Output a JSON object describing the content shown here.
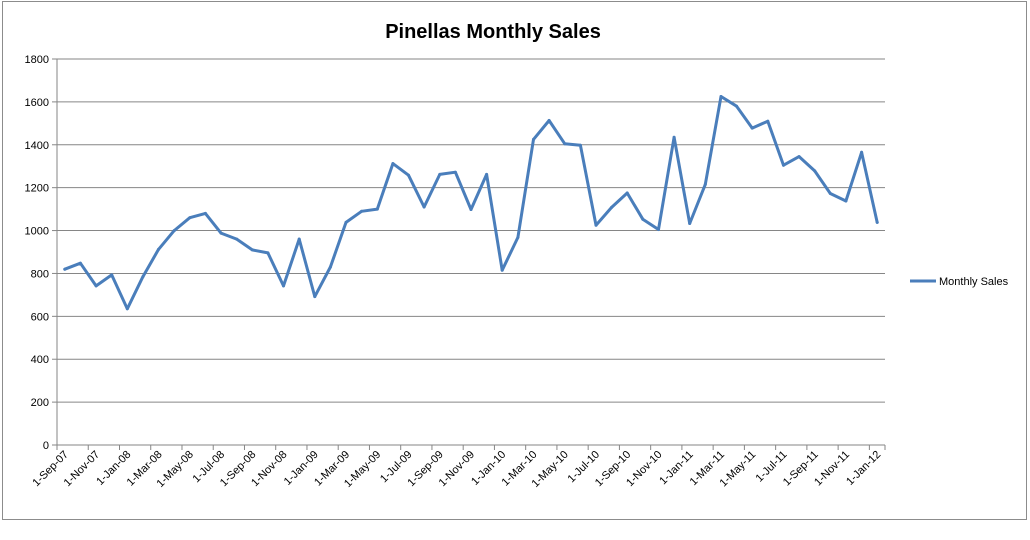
{
  "chart_data": {
    "type": "line",
    "title": "Pinellas Monthly Sales",
    "xlabel": "",
    "ylabel": "",
    "ylim": [
      0,
      1800
    ],
    "y_ticks": [
      0,
      200,
      400,
      600,
      800,
      1000,
      1200,
      1400,
      1600,
      1800
    ],
    "grid": true,
    "legend": "right",
    "line_color": "#4a7ebb",
    "x": [
      "2007-09-01",
      "2007-10-01",
      "2007-11-01",
      "2007-12-01",
      "2008-01-01",
      "2008-02-01",
      "2008-03-01",
      "2008-04-01",
      "2008-05-01",
      "2008-06-01",
      "2008-07-01",
      "2008-08-01",
      "2008-09-01",
      "2008-10-01",
      "2008-11-01",
      "2008-12-01",
      "2009-01-01",
      "2009-02-01",
      "2009-03-01",
      "2009-04-01",
      "2009-05-01",
      "2009-06-01",
      "2009-07-01",
      "2009-08-01",
      "2009-09-01",
      "2009-10-01",
      "2009-11-01",
      "2009-12-01",
      "2010-01-01",
      "2010-02-01",
      "2010-03-01",
      "2010-04-01",
      "2010-05-01",
      "2010-06-01",
      "2010-07-01",
      "2010-08-01",
      "2010-09-01",
      "2010-10-01",
      "2010-11-01",
      "2010-12-01",
      "2011-01-01",
      "2011-02-01",
      "2011-03-01",
      "2011-04-01",
      "2011-05-01",
      "2011-06-01",
      "2011-07-01",
      "2011-08-01",
      "2011-09-01",
      "2011-10-01",
      "2011-11-01",
      "2011-12-01",
      "2012-01-01"
    ],
    "x_tick_labels": [
      "1-Sep-07",
      "1-Nov-07",
      "1-Jan-08",
      "1-Mar-08",
      "1-May-08",
      "1-Jul-08",
      "1-Sep-08",
      "1-Nov-08",
      "1-Jan-09",
      "1-Mar-09",
      "1-May-09",
      "1-Jul-09",
      "1-Sep-09",
      "1-Nov-09",
      "1-Jan-10",
      "1-Mar-10",
      "1-May-10",
      "1-Jul-10",
      "1-Sep-10",
      "1-Nov-10",
      "1-Jan-11",
      "1-Mar-11",
      "1-May-11",
      "1-Jul-11",
      "1-Sep-11",
      "1-Nov-11",
      "1-Jan-12"
    ],
    "series": [
      {
        "name": "Monthly Sales",
        "values": [
          820,
          848,
          742,
          793,
          635,
          785,
          912,
          1000,
          1060,
          1080,
          988,
          960,
          910,
          896,
          742,
          960,
          692,
          830,
          1038,
          1090,
          1100,
          1312,
          1258,
          1110,
          1262,
          1272,
          1098,
          1262,
          815,
          968,
          1425,
          1513,
          1405,
          1398,
          1025,
          1108,
          1175,
          1053,
          1005,
          1435,
          1033,
          1215,
          1625,
          1580,
          1478,
          1510,
          1305,
          1345,
          1278,
          1173,
          1138,
          1365,
          1038
        ]
      }
    ]
  }
}
